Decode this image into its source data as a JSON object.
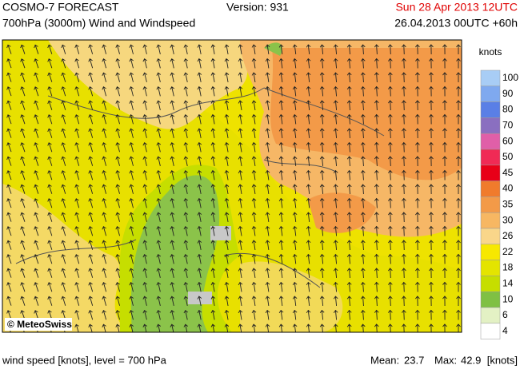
{
  "header": {
    "title": "COSMO-7 FORECAST",
    "version": "Version: 931",
    "valid_time": "Sun 28 Apr 2013 12UTC",
    "subtitle": "700hPa (3000m) Wind and Windspeed",
    "run": "26.04.2013 00UTC +60h"
  },
  "map": {
    "logo": "© MeteoSwiss"
  },
  "legend": {
    "unit": "knots",
    "levels": [
      100,
      90,
      80,
      70,
      60,
      50,
      45,
      40,
      35,
      30,
      26,
      22,
      18,
      14,
      10,
      6,
      4
    ],
    "colors": [
      "#a8cdf5",
      "#7fa9ef",
      "#5a7fe6",
      "#8a6fc0",
      "#e05fa8",
      "#f02a55",
      "#e80018",
      "#f07b2c",
      "#f39a48",
      "#f7b762",
      "#f9d68a",
      "#f7e800",
      "#e4e400",
      "#c6de00",
      "#7fc043",
      "#e3f1c4",
      "#ffffff"
    ]
  },
  "footer": {
    "description": "wind speed [knots], level = 700 hPa",
    "mean_label": "Mean:",
    "mean": 23.7,
    "max_label": "Max:",
    "max": 42.9,
    "unit": "[knots]"
  }
}
